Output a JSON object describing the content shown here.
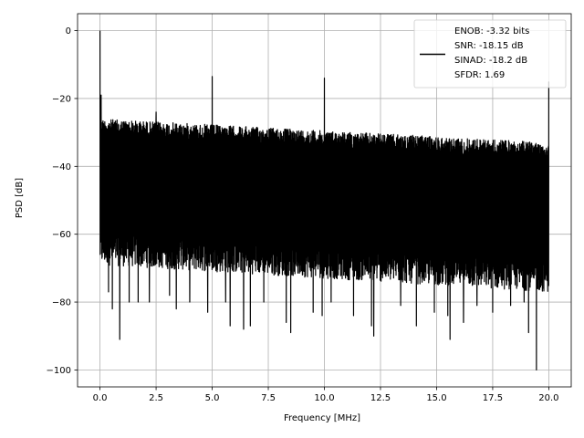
{
  "chart_data": {
    "type": "line",
    "xlabel": "Frequency [MHz]",
    "ylabel": "PSD [dB]",
    "xlim": [
      -1.0,
      21.0
    ],
    "ylim": [
      -105,
      5
    ],
    "grid": true,
    "x_ticks": [
      0.0,
      2.5,
      5.0,
      7.5,
      10.0,
      12.5,
      15.0,
      17.5,
      20.0
    ],
    "x_tick_labels": [
      "0.0",
      "2.5",
      "5.0",
      "7.5",
      "10.0",
      "12.5",
      "15.0",
      "17.5",
      "20.0"
    ],
    "y_ticks": [
      0,
      -20,
      -40,
      -60,
      -80,
      -100
    ],
    "y_tick_labels": [
      "0",
      "−20",
      "−40",
      "−60",
      "−80",
      "−100"
    ],
    "line_color": "#000000",
    "legend": {
      "placement": "top-right",
      "entries": [
        "ENOB: -3.32 bits",
        "SNR: -18.15 dB",
        "SINAD: -18.2 dB",
        "SFDR: 1.69"
      ]
    },
    "series": [
      {
        "x_range": [
          0.0,
          20.0
        ],
        "noise_floor": {
          "upper_db": [
            -26,
            -33
          ],
          "lower_db": [
            -64,
            -72
          ]
        },
        "deep_dips": [
          {
            "x": 0.38,
            "y": -77
          },
          {
            "x": 0.55,
            "y": -82
          },
          {
            "x": 0.88,
            "y": -91
          },
          {
            "x": 1.3,
            "y": -80
          },
          {
            "x": 1.7,
            "y": -80
          },
          {
            "x": 2.2,
            "y": -80
          },
          {
            "x": 3.1,
            "y": -78
          },
          {
            "x": 3.4,
            "y": -82
          },
          {
            "x": 4.0,
            "y": -80
          },
          {
            "x": 4.8,
            "y": -83
          },
          {
            "x": 5.6,
            "y": -80
          },
          {
            "x": 5.8,
            "y": -87
          },
          {
            "x": 6.4,
            "y": -88
          },
          {
            "x": 6.7,
            "y": -87
          },
          {
            "x": 7.3,
            "y": -80
          },
          {
            "x": 8.3,
            "y": -86
          },
          {
            "x": 8.5,
            "y": -89
          },
          {
            "x": 9.5,
            "y": -83
          },
          {
            "x": 9.9,
            "y": -84
          },
          {
            "x": 10.3,
            "y": -80
          },
          {
            "x": 11.3,
            "y": -84
          },
          {
            "x": 12.1,
            "y": -87
          },
          {
            "x": 12.2,
            "y": -90
          },
          {
            "x": 13.4,
            "y": -81
          },
          {
            "x": 14.1,
            "y": -87
          },
          {
            "x": 14.9,
            "y": -83
          },
          {
            "x": 15.5,
            "y": -84
          },
          {
            "x": 15.6,
            "y": -91
          },
          {
            "x": 16.2,
            "y": -86
          },
          {
            "x": 16.8,
            "y": -81
          },
          {
            "x": 17.5,
            "y": -83
          },
          {
            "x": 18.3,
            "y": -81
          },
          {
            "x": 18.9,
            "y": -80
          },
          {
            "x": 19.1,
            "y": -89
          },
          {
            "x": 19.45,
            "y": -100
          }
        ],
        "spikes": [
          {
            "x": 0.0,
            "y": 0
          },
          {
            "x": 0.05,
            "y": -19
          },
          {
            "x": 2.5,
            "y": -24
          },
          {
            "x": 5.0,
            "y": -13.5
          },
          {
            "x": 10.0,
            "y": -14
          },
          {
            "x": 20.0,
            "y": -15
          }
        ]
      }
    ]
  }
}
